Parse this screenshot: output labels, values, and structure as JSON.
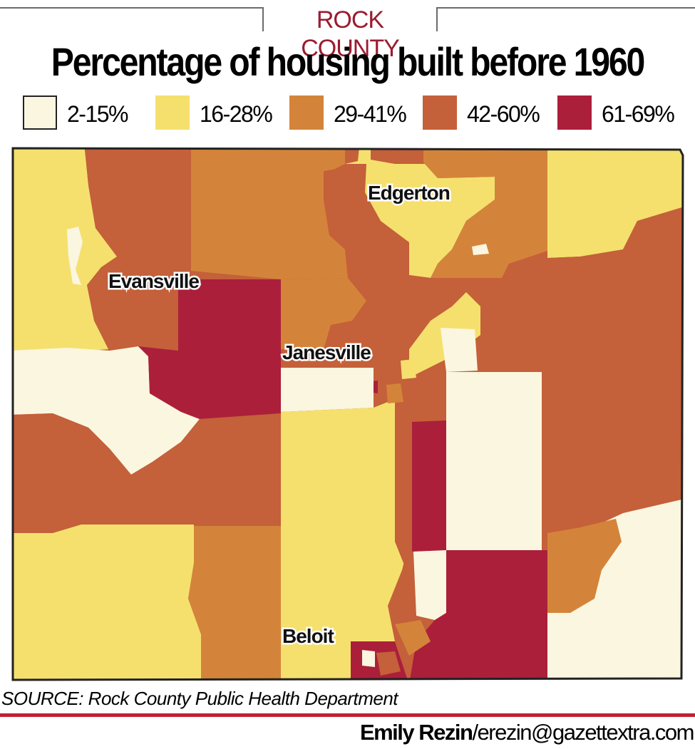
{
  "header": {
    "kicker": "ROCK COUNTY",
    "title": "Percentage of housing built before 1960"
  },
  "legend": [
    {
      "label": "2-15%",
      "color": "#fbf6df"
    },
    {
      "label": "16-28%",
      "color": "#f5e06e"
    },
    {
      "label": "29-41%",
      "color": "#d3843a"
    },
    {
      "label": "42-60%",
      "color": "#c4603a"
    },
    {
      "label": "61-69%",
      "color": "#ab1f3b"
    }
  ],
  "cities": {
    "evansville": "Evansville",
    "janesville": "Janesville",
    "edgerton": "Edgerton",
    "beloit": "Beloit"
  },
  "footer": {
    "source": "SOURCE: Rock County Public Health Department",
    "author": "Emily Rezin",
    "email": "/erezin@gazettextra.com"
  },
  "colors": {
    "kicker": "#9b1b30",
    "rule": "#c22033",
    "outline": "#222222"
  }
}
